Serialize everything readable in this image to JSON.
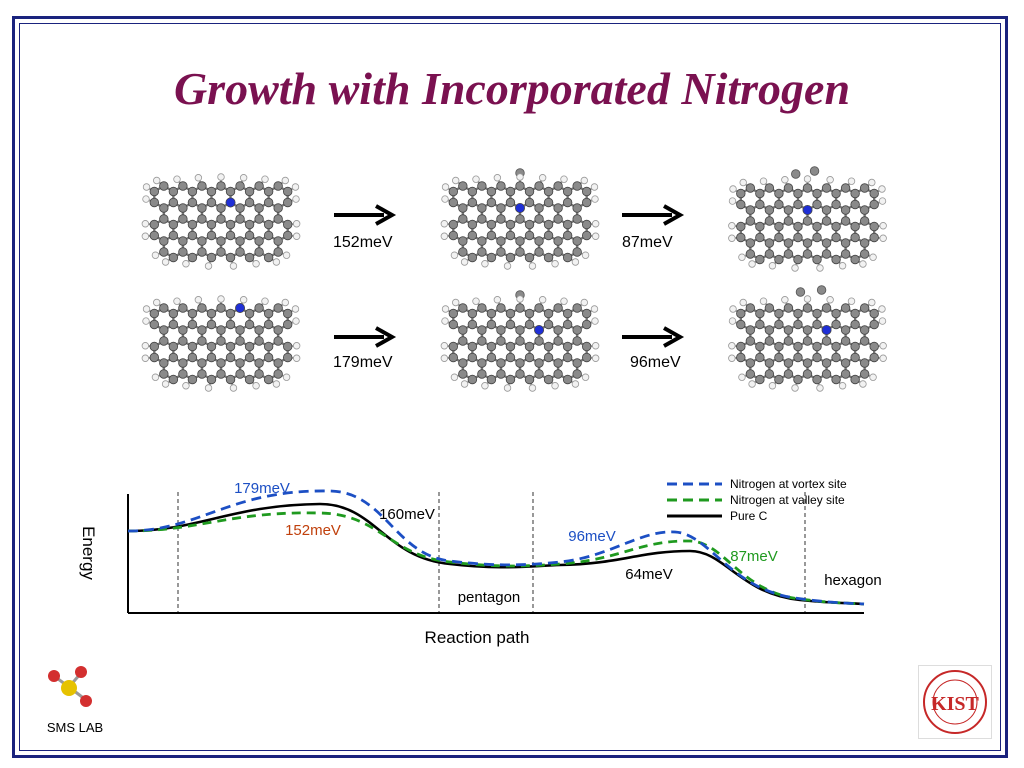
{
  "slide": {
    "title": "Growth with Incorporated Nitrogen"
  },
  "structures": {
    "row1": {
      "arrow1_label": "152meV",
      "arrow2_label": "87meV"
    },
    "row2": {
      "arrow1_label": "179meV",
      "arrow2_label": "96meV"
    }
  },
  "energy_diagram": {
    "ylabel": "Energy",
    "xlabel": "Reaction path",
    "stage_labels": [
      "pentagon",
      "hexagon"
    ],
    "annotations": [
      {
        "text": "179meV",
        "color": "#1c4fc4"
      },
      {
        "text": "152meV",
        "color": "#c0400c"
      },
      {
        "text": "160meV",
        "color": "#000000"
      },
      {
        "text": "96meV",
        "color": "#1c4fc4"
      },
      {
        "text": "87meV",
        "color": "#1f9a1f"
      },
      {
        "text": "64meV",
        "color": "#000000"
      }
    ],
    "legend": [
      {
        "label": "Nitrogen at vortex site",
        "color": "#1c4fc4",
        "style": "dashed"
      },
      {
        "label": "Nitrogen at valley site",
        "color": "#1f9a1f",
        "style": "dashed"
      },
      {
        "label": "Pure C",
        "color": "#000000",
        "style": "solid"
      }
    ]
  },
  "logos": {
    "sms_lab": "SMS LAB",
    "kist": "KIST"
  },
  "colors": {
    "title": "#7a1150",
    "frame": "#1a237e",
    "carbon": "#8a8a8a",
    "nitrogen": "#1f2fd6",
    "hydrogen": "#f2f2f2"
  }
}
